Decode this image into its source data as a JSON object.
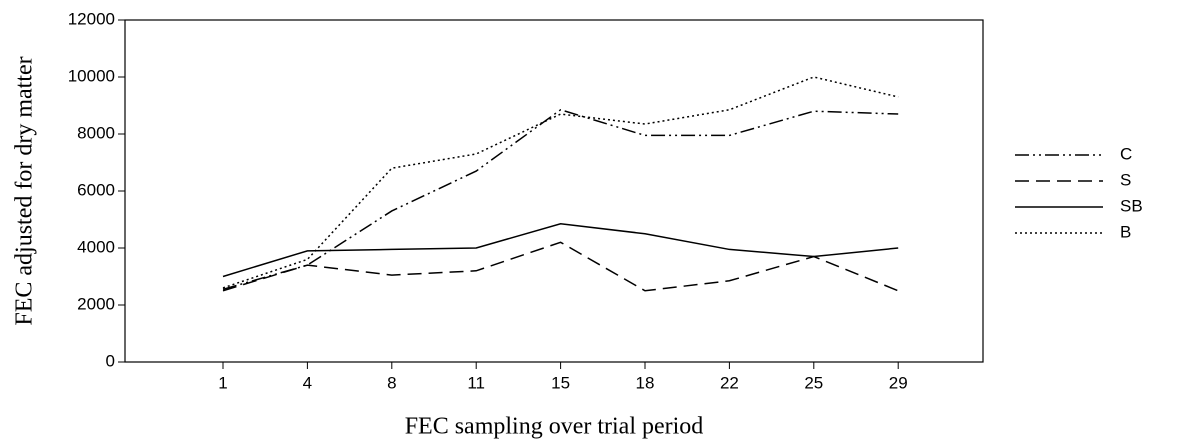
{
  "chart_data": {
    "type": "line",
    "x_label": "FEC sampling over trial period",
    "y_label": "FEC adjusted for dry matter",
    "categories": [
      "1",
      "4",
      "8",
      "11",
      "15",
      "18",
      "22",
      "25",
      "29"
    ],
    "ylim": [
      0,
      12000
    ],
    "yticks": [
      0,
      2000,
      4000,
      6000,
      8000,
      10000,
      12000
    ],
    "legend": "right",
    "series": [
      {
        "name": "C",
        "color": "#000000",
        "dash": "dash-dot-dot",
        "values": [
          2550,
          3400,
          5300,
          6700,
          8850,
          7950,
          7950,
          8800,
          8700
        ]
      },
      {
        "name": "S",
        "color": "#000000",
        "dash": "dashed",
        "values": [
          2500,
          3400,
          3050,
          3200,
          4200,
          2500,
          2850,
          3700,
          2500
        ]
      },
      {
        "name": "SB",
        "color": "#000000",
        "dash": "solid",
        "values": [
          3000,
          3900,
          3950,
          4000,
          4850,
          4500,
          3950,
          3700,
          4000
        ]
      },
      {
        "name": "B",
        "color": "#000000",
        "dash": "dotted",
        "values": [
          2600,
          3600,
          6800,
          7300,
          8700,
          8350,
          8850,
          10000,
          9300
        ]
      }
    ]
  }
}
